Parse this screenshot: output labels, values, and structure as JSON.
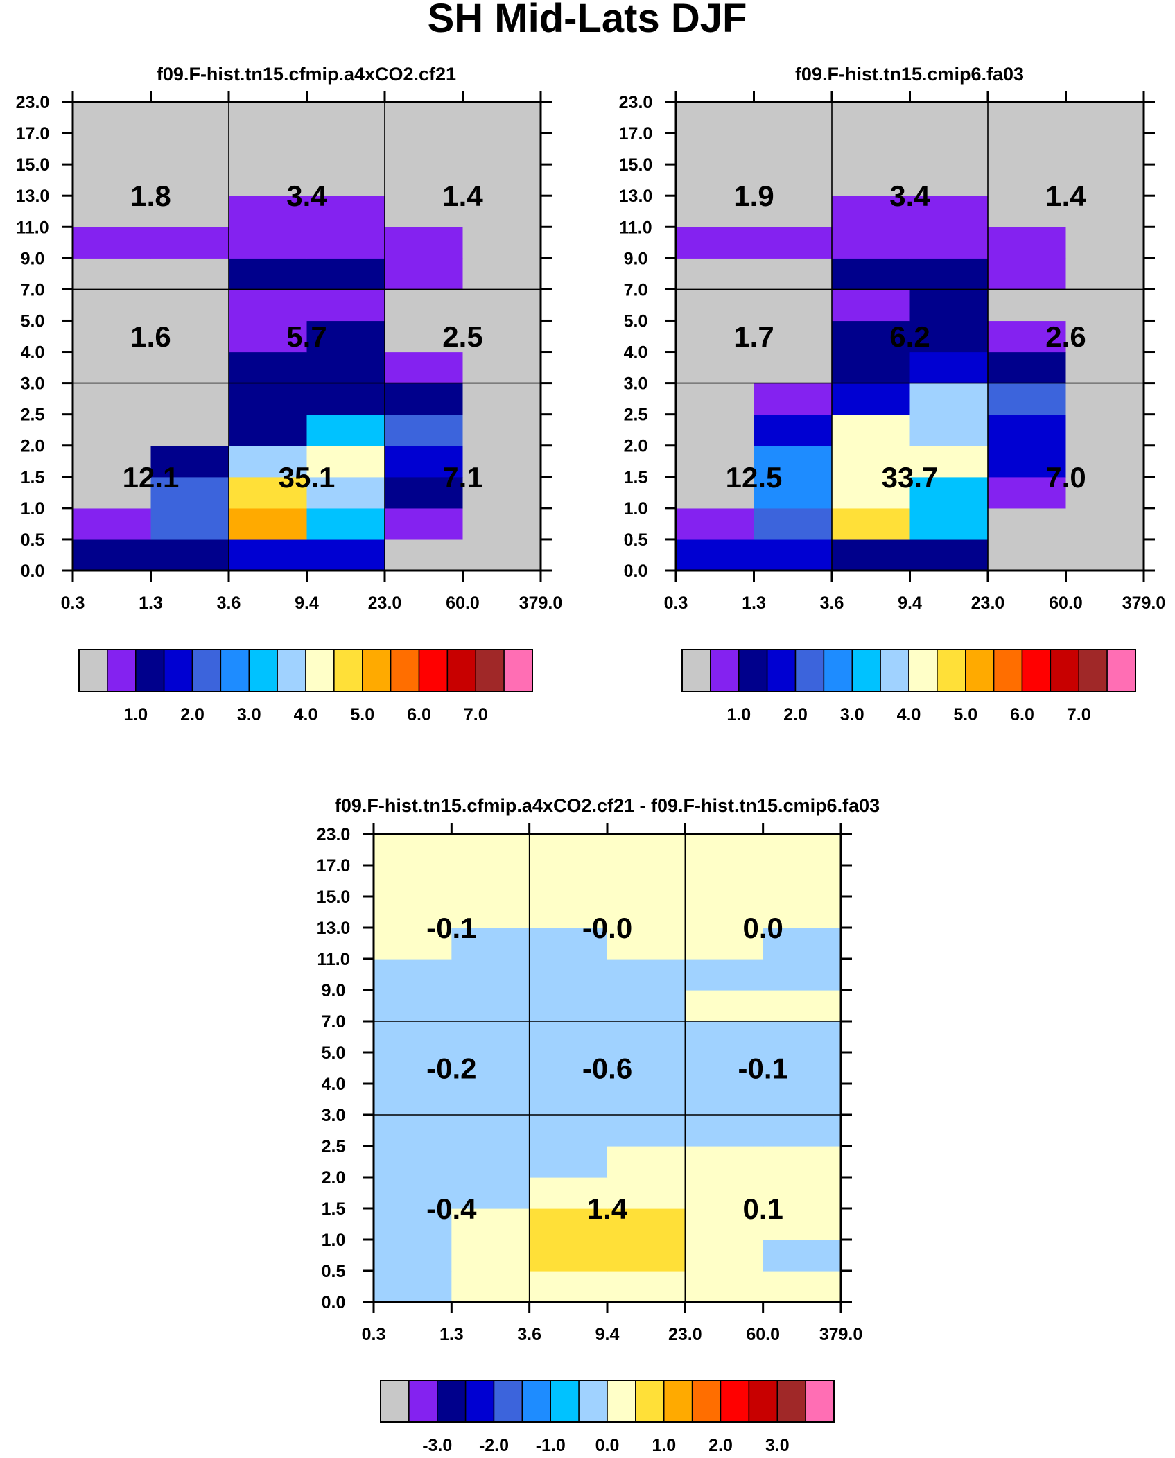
{
  "figure": {
    "title": "SH Mid-Lats DJF"
  },
  "palette": {
    "name": "15-color cloud fraction palette",
    "colors": [
      "#c8c8c8",
      "#8422f0",
      "#00008c",
      "#0000d2",
      "#3c64dc",
      "#1e8cff",
      "#00c2ff",
      "#a0d2ff",
      "#ffffc8",
      "#ffe038",
      "#ffaa00",
      "#ff6e00",
      "#ff0000",
      "#c80000",
      "#a02828",
      "#ff6eb4"
    ]
  },
  "chart_data": [
    {
      "id": "left",
      "type": "heatmap",
      "title": "f09.F-hist.tn15.cfmip.a4xCO2.cf21",
      "xlabel": "",
      "ylabel": "",
      "x_ticks": [
        "0.3",
        "1.3",
        "3.6",
        "9.4",
        "23.0",
        "60.0",
        "379.0"
      ],
      "y_ticks": [
        "0.0",
        "0.5",
        "1.0",
        "1.5",
        "2.0",
        "2.5",
        "3.0",
        "4.0",
        "5.0",
        "7.0",
        "9.0",
        "11.0",
        "13.0",
        "15.0",
        "17.0",
        "23.0"
      ],
      "rows": 15,
      "cols": 6,
      "cell_color_index": [
        [
          2,
          2,
          3,
          3,
          0,
          0
        ],
        [
          1,
          4,
          10,
          6,
          1,
          0
        ],
        [
          0,
          4,
          9,
          7,
          2,
          0
        ],
        [
          0,
          2,
          7,
          8,
          3,
          0
        ],
        [
          0,
          0,
          2,
          6,
          4,
          0
        ],
        [
          0,
          0,
          2,
          2,
          2,
          0
        ],
        [
          0,
          0,
          2,
          2,
          1,
          0
        ],
        [
          0,
          0,
          1,
          2,
          0,
          0
        ],
        [
          0,
          0,
          1,
          1,
          0,
          0
        ],
        [
          0,
          0,
          2,
          2,
          1,
          0
        ],
        [
          1,
          1,
          1,
          1,
          1,
          0
        ],
        [
          0,
          0,
          1,
          1,
          0,
          0
        ],
        [
          0,
          0,
          0,
          0,
          0,
          0
        ],
        [
          0,
          0,
          0,
          0,
          0,
          0
        ],
        [
          0,
          0,
          0,
          0,
          0,
          0
        ]
      ],
      "grid_lines_x_index": [
        2,
        4
      ],
      "grid_lines_y_index": [
        6,
        9
      ],
      "group_labels": [
        "12.1",
        "35.1",
        "7.1",
        "1.6",
        "5.7",
        "2.5",
        "1.8",
        "3.4",
        "1.4"
      ],
      "colorbar": {
        "labels": [
          "1.0",
          "2.0",
          "3.0",
          "4.0",
          "5.0",
          "6.0",
          "7.0"
        ],
        "boxes": 16
      }
    },
    {
      "id": "right",
      "type": "heatmap",
      "title": "f09.F-hist.tn15.cmip6.fa03",
      "xlabel": "",
      "ylabel": "",
      "x_ticks": [
        "0.3",
        "1.3",
        "3.6",
        "9.4",
        "23.0",
        "60.0",
        "379.0"
      ],
      "y_ticks": [
        "0.0",
        "0.5",
        "1.0",
        "1.5",
        "2.0",
        "2.5",
        "3.0",
        "4.0",
        "5.0",
        "7.0",
        "9.0",
        "11.0",
        "13.0",
        "15.0",
        "17.0",
        "23.0"
      ],
      "rows": 15,
      "cols": 6,
      "cell_color_index": [
        [
          3,
          3,
          2,
          2,
          0,
          0
        ],
        [
          1,
          4,
          9,
          6,
          0,
          0
        ],
        [
          0,
          5,
          8,
          6,
          1,
          0
        ],
        [
          0,
          5,
          8,
          8,
          3,
          0
        ],
        [
          0,
          3,
          8,
          7,
          3,
          0
        ],
        [
          0,
          1,
          3,
          7,
          4,
          0
        ],
        [
          0,
          0,
          2,
          3,
          2,
          0
        ],
        [
          0,
          0,
          2,
          2,
          1,
          0
        ],
        [
          0,
          0,
          1,
          2,
          0,
          0
        ],
        [
          0,
          0,
          2,
          2,
          1,
          0
        ],
        [
          1,
          1,
          1,
          1,
          1,
          0
        ],
        [
          0,
          0,
          1,
          1,
          0,
          0
        ],
        [
          0,
          0,
          0,
          0,
          0,
          0
        ],
        [
          0,
          0,
          0,
          0,
          0,
          0
        ],
        [
          0,
          0,
          0,
          0,
          0,
          0
        ]
      ],
      "grid_lines_x_index": [
        2,
        4
      ],
      "grid_lines_y_index": [
        6,
        9
      ],
      "group_labels": [
        "12.5",
        "33.7",
        "7.0",
        "1.7",
        "6.2",
        "2.6",
        "1.9",
        "3.4",
        "1.4"
      ],
      "colorbar": {
        "labels": [
          "1.0",
          "2.0",
          "3.0",
          "4.0",
          "5.0",
          "6.0",
          "7.0"
        ],
        "boxes": 16
      }
    },
    {
      "id": "diff",
      "type": "heatmap",
      "title": "f09.F-hist.tn15.cfmip.a4xCO2.cf21 - f09.F-hist.tn15.cmip6.fa03",
      "xlabel": "",
      "ylabel": "",
      "x_ticks": [
        "0.3",
        "1.3",
        "3.6",
        "9.4",
        "23.0",
        "60.0",
        "379.0"
      ],
      "y_ticks": [
        "0.0",
        "0.5",
        "1.0",
        "1.5",
        "2.0",
        "2.5",
        "3.0",
        "4.0",
        "5.0",
        "7.0",
        "9.0",
        "11.0",
        "13.0",
        "15.0",
        "17.0",
        "23.0"
      ],
      "rows": 15,
      "cols": 6,
      "cell_color_index": [
        [
          7,
          8,
          8,
          8,
          8,
          8
        ],
        [
          7,
          8,
          9,
          9,
          8,
          7
        ],
        [
          7,
          8,
          9,
          9,
          8,
          8
        ],
        [
          7,
          7,
          8,
          8,
          8,
          8
        ],
        [
          7,
          7,
          7,
          8,
          8,
          8
        ],
        [
          7,
          7,
          7,
          7,
          7,
          7
        ],
        [
          7,
          7,
          7,
          7,
          7,
          7
        ],
        [
          7,
          7,
          7,
          7,
          7,
          7
        ],
        [
          7,
          7,
          7,
          7,
          7,
          7
        ],
        [
          7,
          7,
          7,
          7,
          8,
          8
        ],
        [
          7,
          7,
          7,
          7,
          7,
          7
        ],
        [
          8,
          7,
          7,
          8,
          8,
          7
        ],
        [
          8,
          8,
          8,
          8,
          8,
          8
        ],
        [
          8,
          8,
          8,
          8,
          8,
          8
        ],
        [
          8,
          8,
          8,
          8,
          8,
          8
        ]
      ],
      "grid_lines_x_index": [
        2,
        4
      ],
      "grid_lines_y_index": [
        6,
        9
      ],
      "group_labels": [
        "-0.4",
        "1.4",
        "0.1",
        "-0.2",
        "-0.6",
        "-0.1",
        "-0.1",
        "-0.0",
        "0.0"
      ],
      "colorbar": {
        "labels": [
          "-3.0",
          "-2.0",
          "-1.0",
          "0.0",
          "1.0",
          "2.0",
          "3.0"
        ],
        "boxes": 16
      }
    }
  ]
}
